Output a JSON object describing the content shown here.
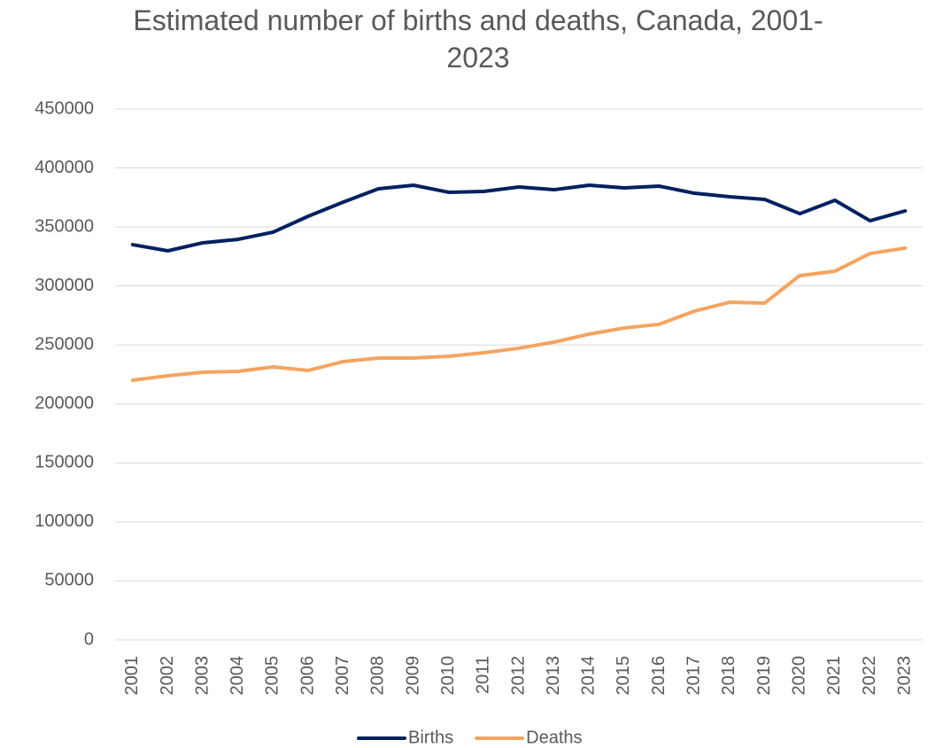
{
  "chart_data": {
    "type": "line",
    "title": "Estimated number of births and deaths, Canada, 2001-2023",
    "categories": [
      "2001",
      "2002",
      "2003",
      "2004",
      "2005",
      "2006",
      "2007",
      "2008",
      "2009",
      "2010",
      "2011",
      "2012",
      "2013",
      "2014",
      "2015",
      "2016",
      "2017",
      "2018",
      "2019",
      "2020",
      "2021",
      "2022",
      "2023"
    ],
    "series": [
      {
        "name": "Births",
        "color": "#002060",
        "values": [
          335000,
          329800,
          336600,
          339500,
          345600,
          359100,
          371100,
          382400,
          385400,
          379400,
          380100,
          383900,
          381600,
          385400,
          383100,
          384600,
          378600,
          375600,
          373400,
          361300,
          372600,
          355300,
          363600
        ]
      },
      {
        "name": "Deaths",
        "color": "#f4a460",
        "values": [
          220100,
          223900,
          226900,
          227600,
          231400,
          228400,
          235900,
          238900,
          238900,
          240400,
          243400,
          247200,
          252400,
          259200,
          264400,
          267500,
          278700,
          286200,
          285500,
          308800,
          312500,
          327500,
          332100
        ]
      }
    ],
    "ylim": [
      0,
      450000
    ],
    "yticks": [
      0,
      50000,
      100000,
      150000,
      200000,
      250000,
      300000,
      350000,
      400000,
      450000
    ],
    "grid": true,
    "legend": "bottom"
  }
}
